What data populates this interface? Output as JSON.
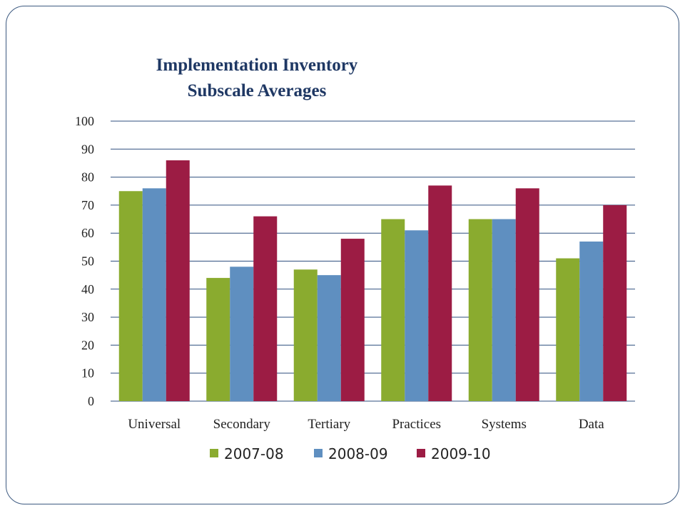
{
  "chart_data": {
    "type": "bar",
    "title": "Implementation Inventory Subscale Averages",
    "title_lines": [
      "Implementation Inventory",
      "Subscale Averages"
    ],
    "categories": [
      "Universal",
      "Secondary",
      "Tertiary",
      "Practices",
      "Systems",
      "Data"
    ],
    "series": [
      {
        "name": "2007-08",
        "color": "#8aab2f",
        "values": [
          75,
          44,
          47,
          65,
          65,
          51
        ]
      },
      {
        "name": "2008-09",
        "color": "#5f8fc0",
        "values": [
          76,
          48,
          45,
          61,
          65,
          57
        ]
      },
      {
        "name": "2009-10",
        "color": "#9c1c44",
        "values": [
          86,
          66,
          58,
          77,
          76,
          70
        ]
      }
    ],
    "ylim": [
      0,
      100
    ],
    "yticks": [
      0,
      10,
      20,
      30,
      40,
      50,
      60,
      70,
      80,
      90,
      100
    ],
    "grid": true,
    "grid_color": "#2f4f7f",
    "legend": "bottom"
  }
}
